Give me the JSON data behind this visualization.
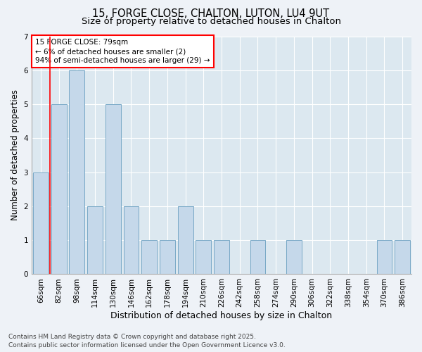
{
  "title_line1": "15, FORGE CLOSE, CHALTON, LUTON, LU4 9UT",
  "title_line2": "Size of property relative to detached houses in Chalton",
  "xlabel": "Distribution of detached houses by size in Chalton",
  "ylabel": "Number of detached properties",
  "categories": [
    "66sqm",
    "82sqm",
    "98sqm",
    "114sqm",
    "130sqm",
    "146sqm",
    "162sqm",
    "178sqm",
    "194sqm",
    "210sqm",
    "226sqm",
    "242sqm",
    "258sqm",
    "274sqm",
    "290sqm",
    "306sqm",
    "322sqm",
    "338sqm",
    "354sqm",
    "370sqm",
    "386sqm"
  ],
  "values": [
    3,
    5,
    6,
    2,
    5,
    2,
    1,
    1,
    2,
    1,
    1,
    0,
    1,
    0,
    1,
    0,
    0,
    0,
    0,
    1,
    1
  ],
  "bar_color": "#c5d8ea",
  "bar_edge_color": "#6a9fc0",
  "annotation_box_text": "15 FORGE CLOSE: 79sqm\n← 6% of detached houses are smaller (2)\n94% of semi-detached houses are larger (29) →",
  "ylim": [
    0,
    7
  ],
  "yticks": [
    0,
    1,
    2,
    3,
    4,
    5,
    6,
    7
  ],
  "footer_line1": "Contains HM Land Registry data © Crown copyright and database right 2025.",
  "footer_line2": "Contains public sector information licensed under the Open Government Licence v3.0.",
  "plot_bg_color": "#dce8f0",
  "fig_bg_color": "#eef2f7",
  "grid_color": "#ffffff",
  "red_line_x": 0.5,
  "title_fontsize": 10.5,
  "subtitle_fontsize": 9.5,
  "axis_label_fontsize": 8.5,
  "tick_fontsize": 7.5,
  "annotation_fontsize": 7.5,
  "footer_fontsize": 6.5
}
